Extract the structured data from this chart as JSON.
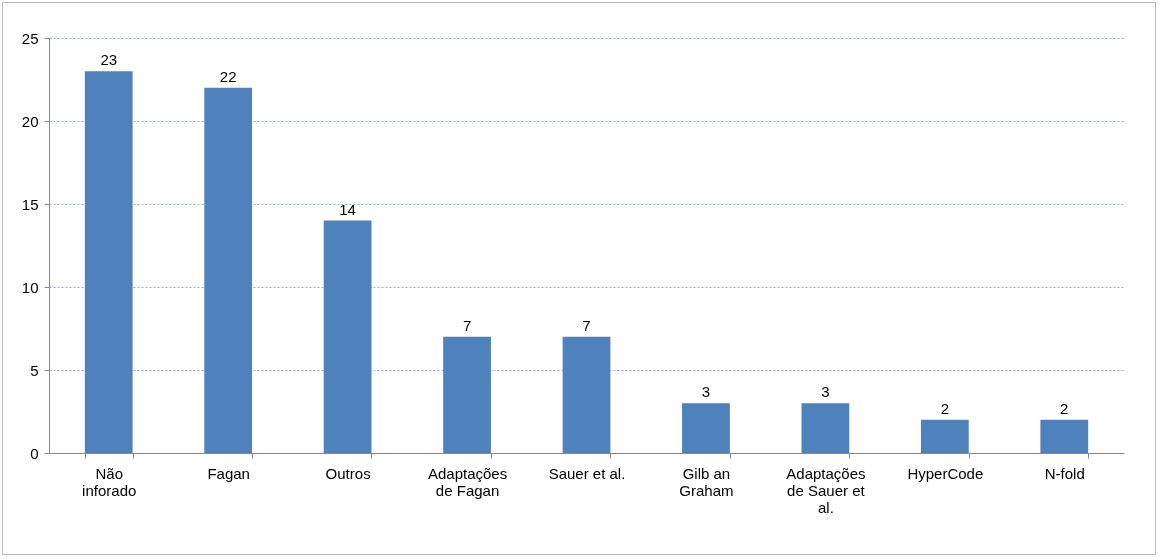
{
  "chart_data": {
    "type": "bar",
    "categories": [
      "Não inforado",
      "Fagan",
      "Outros",
      "Adaptações de Fagan",
      "Sauer et al.",
      "Gilb an Graham",
      "Adaptações de Sauer et al.",
      "HyperCode",
      "N-fold"
    ],
    "values": [
      23,
      22,
      14,
      7,
      7,
      3,
      3,
      2,
      2
    ],
    "color": "#4f81bd",
    "ylim": [
      0,
      25
    ],
    "yticks": [
      0,
      5,
      10,
      15,
      20,
      25
    ],
    "grid": "y",
    "data_labels": true
  }
}
